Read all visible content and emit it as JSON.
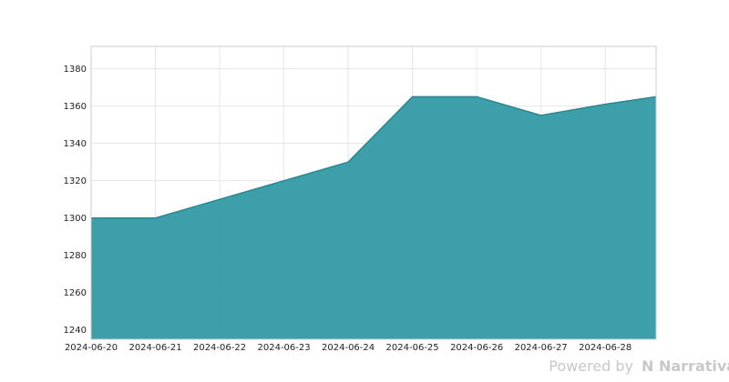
{
  "chart_data": {
    "type": "area",
    "x": [
      "2024-06-20",
      "2024-06-21",
      "2024-06-22",
      "2024-06-23",
      "2024-06-24",
      "2024-06-25",
      "2024-06-26",
      "2024-06-27",
      "2024-06-28",
      "2024-06-28T19:00"
    ],
    "values": [
      1300,
      1300,
      1310,
      1320,
      1330,
      1365,
      1365,
      1355,
      1361,
      1365
    ],
    "color": "#339aa5",
    "xlim": [
      "2024-06-20",
      "2024-06-28T19:00"
    ],
    "xticks": [
      "2024-06-20",
      "2024-06-21",
      "2024-06-22",
      "2024-06-23",
      "2024-06-24",
      "2024-06-25",
      "2024-06-26",
      "2024-06-27",
      "2024-06-28"
    ],
    "ylim": [
      1235,
      1392
    ],
    "yticks": [
      1240,
      1260,
      1280,
      1300,
      1320,
      1340,
      1360,
      1380
    ],
    "grid": true,
    "watermark": {
      "prefix": "Powered by",
      "brand": "Narrativa"
    }
  }
}
